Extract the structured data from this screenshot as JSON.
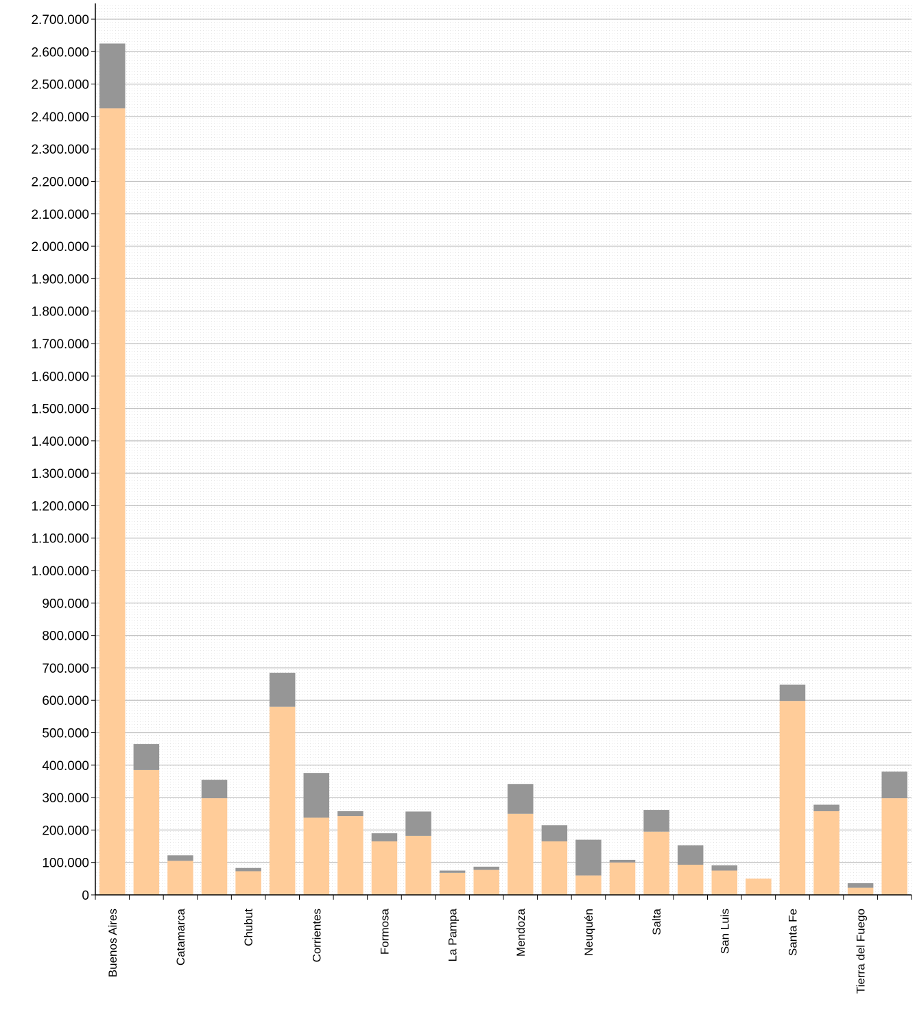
{
  "chart_data": {
    "type": "bar",
    "stacked": true,
    "categories": [
      "Buenos Aires",
      "",
      "Catamarca",
      "",
      "Chubut",
      "",
      "Corrientes",
      "",
      "Formosa",
      "",
      "La Pampa",
      "",
      "Mendoza",
      "",
      "Neuquén",
      "",
      "Salta",
      "",
      "San Luis",
      "",
      "Santa Fe",
      "",
      "Tierra del Fuego",
      ""
    ],
    "series": [
      {
        "color": "#FFCC99",
        "values": [
          2425000,
          385000,
          105000,
          298000,
          73000,
          580000,
          238000,
          243000,
          165000,
          182000,
          68000,
          77000,
          250000,
          165000,
          60000,
          100000,
          195000,
          93000,
          75000,
          50000,
          598000,
          258000,
          22000,
          298000
        ]
      },
      {
        "color": "#969696",
        "values": [
          200000,
          80000,
          17000,
          57000,
          10000,
          105000,
          138000,
          15000,
          25000,
          75000,
          7000,
          10000,
          92000,
          50000,
          110000,
          8000,
          67000,
          60000,
          16000,
          0,
          50000,
          20000,
          14000,
          82000
        ]
      }
    ],
    "ylim": [
      0,
      2700000
    ],
    "yticks": [
      "0",
      "100.000",
      "200.000",
      "300.000",
      "400.000",
      "500.000",
      "600.000",
      "700.000",
      "800.000",
      "900.000",
      "1.000.000",
      "1.100.000",
      "1.200.000",
      "1.300.000",
      "1.400.000",
      "1.500.000",
      "1.600.000",
      "1.700.000",
      "1.800.000",
      "1.900.000",
      "2.000.000",
      "2.100.000",
      "2.200.000",
      "2.300.000",
      "2.400.000",
      "2.500.000",
      "2.600.000",
      "2.700.000"
    ],
    "grid": true,
    "legend": "none",
    "gridline_color": "#C0C0C0"
  }
}
